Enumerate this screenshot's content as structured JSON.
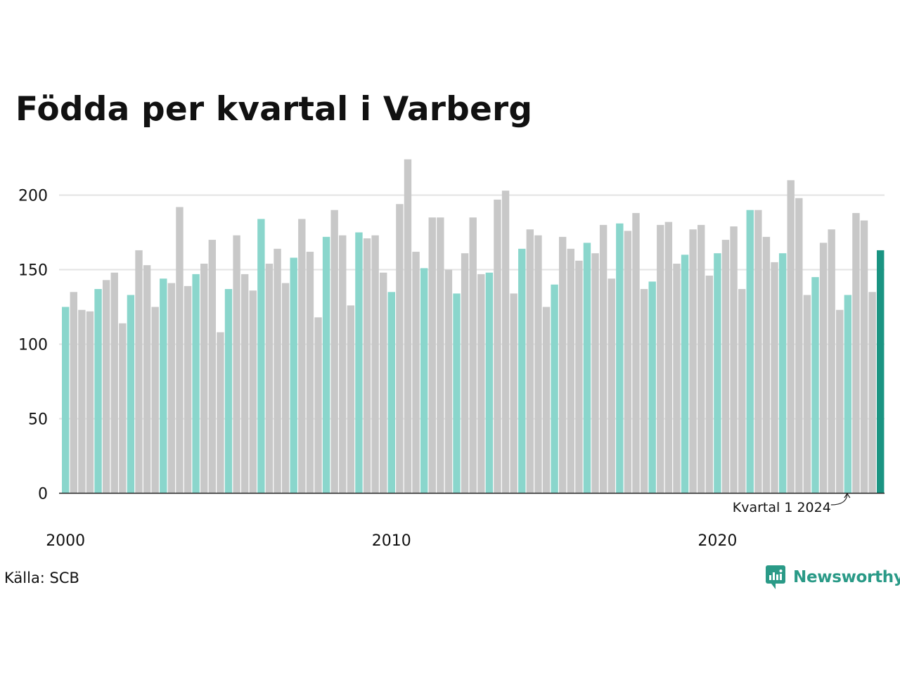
{
  "title": "Födda per kvartal i Varberg",
  "source": "Källa: SCB",
  "brand": {
    "name": "Newsworthy",
    "icon": "newsworthy-logo-icon"
  },
  "colors": {
    "q1": "#8ad6cc",
    "other": "#c8c8c8",
    "latest": "#1a9482",
    "grid": "#e3e3e3",
    "axis": "#222222",
    "brand": "#2a9a87"
  },
  "chart_data": {
    "type": "bar",
    "title": "Födda per kvartal i Varberg",
    "ylim": [
      0,
      224
    ],
    "yticks": [
      0,
      50,
      100,
      150,
      200
    ],
    "xtick_labels": [
      "2000",
      "2010",
      "2020"
    ],
    "grid": true,
    "annotation": {
      "text": "Kvartal 1 2024",
      "target": "2024-Q1"
    },
    "series": [
      {
        "start_year": 2000,
        "start_quarter": 1,
        "values": [
          125,
          135,
          123,
          122,
          137,
          143,
          148,
          114,
          133,
          163,
          153,
          125,
          144,
          141,
          192,
          139,
          147,
          154,
          170,
          108,
          137,
          173,
          147,
          136,
          184,
          154,
          164,
          141,
          158,
          184,
          162,
          118,
          172,
          190,
          173,
          126,
          175,
          171,
          173,
          148,
          135,
          194,
          224,
          162,
          151,
          185,
          185,
          150,
          134,
          161,
          185,
          147,
          148,
          197,
          203,
          134,
          164,
          177,
          173,
          125,
          140,
          172,
          164,
          156,
          168,
          161,
          180,
          144,
          181,
          176,
          188,
          137,
          142,
          180,
          182,
          154,
          160,
          177,
          180,
          146,
          161,
          170,
          179,
          137,
          190,
          190,
          172,
          155,
          161,
          210,
          198,
          133,
          145,
          168,
          177,
          123,
          133,
          188,
          183,
          135,
          163
        ]
      }
    ]
  }
}
